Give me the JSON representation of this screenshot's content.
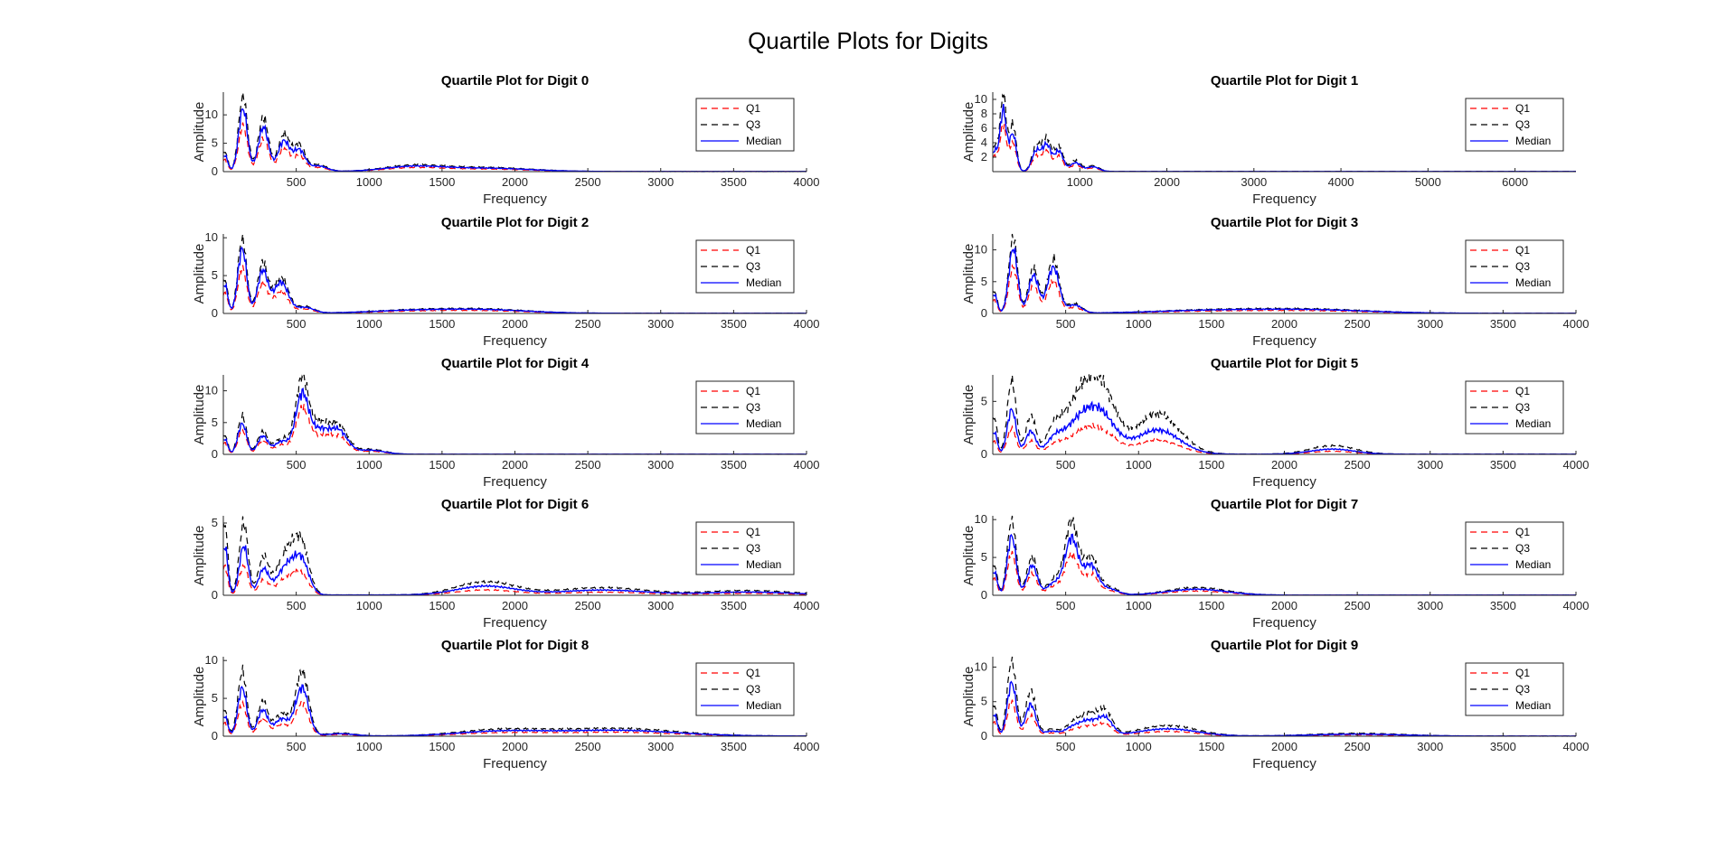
{
  "figure": {
    "title": "Quartile Plots for Digits",
    "colors": {
      "q1": "#ff0000",
      "q3": "#000000",
      "median": "#0000ff",
      "axis": "#262626",
      "background": "#ffffff"
    }
  },
  "chart_data": [
    {
      "type": "line",
      "title": "Quartile Plot for Digit 0",
      "xlabel": "Frequency",
      "ylabel": "Amplitude",
      "xlim": [
        0,
        4000
      ],
      "ylim": [
        0,
        14
      ],
      "xticks": [
        500,
        1000,
        1500,
        2000,
        2500,
        3000,
        3500,
        4000
      ],
      "yticks": [
        0,
        5,
        10
      ],
      "grid": false,
      "legend": {
        "position": "top-right",
        "entries": [
          "Q1",
          "Q3",
          "Median"
        ]
      },
      "peaks": [
        [
          10,
          3.5,
          20
        ],
        [
          135,
          13.5,
          30
        ],
        [
          275,
          9.5,
          35
        ],
        [
          415,
          6.5,
          40
        ],
        [
          520,
          4.5,
          40
        ],
        [
          650,
          1.2,
          60
        ],
        [
          1300,
          1.0,
          200
        ],
        [
          1800,
          0.7,
          300
        ]
      ],
      "quartile_ratios": {
        "Q1": 0.6,
        "Median": 0.82,
        "Q3": 1.0
      }
    },
    {
      "type": "line",
      "title": "Quartile Plot for Digit 1",
      "xlabel": "Frequency",
      "ylabel": "Amplitude",
      "xlim": [
        0,
        6700
      ],
      "ylim": [
        0,
        11
      ],
      "xticks": [
        1000,
        2000,
        3000,
        4000,
        5000,
        6000
      ],
      "yticks": [
        2,
        4,
        6,
        8,
        10
      ],
      "grid": false,
      "legend": {
        "position": "top-right",
        "entries": [
          "Q1",
          "Q3",
          "Median"
        ]
      },
      "peaks": [
        [
          20,
          3.5,
          40
        ],
        [
          120,
          10.5,
          35
        ],
        [
          230,
          6.5,
          40
        ],
        [
          500,
          3.5,
          50
        ],
        [
          620,
          4.5,
          50
        ],
        [
          760,
          3.5,
          50
        ],
        [
          950,
          1.5,
          60
        ],
        [
          1150,
          0.8,
          70
        ]
      ],
      "quartile_ratios": {
        "Q1": 0.6,
        "Median": 0.8,
        "Q3": 1.0
      }
    },
    {
      "type": "line",
      "title": "Quartile Plot for Digit 2",
      "xlabel": "Frequency",
      "ylabel": "Amplitude",
      "xlim": [
        0,
        4000
      ],
      "ylim": [
        0,
        10.5
      ],
      "xticks": [
        500,
        1000,
        1500,
        2000,
        2500,
        3000,
        3500,
        4000
      ],
      "yticks": [
        0,
        5,
        10
      ],
      "grid": false,
      "legend": {
        "position": "top-right",
        "entries": [
          "Q1",
          "Q3",
          "Median"
        ]
      },
      "peaks": [
        [
          10,
          4.5,
          20
        ],
        [
          130,
          10,
          30
        ],
        [
          270,
          6.5,
          35
        ],
        [
          395,
          4.8,
          50
        ],
        [
          560,
          0.9,
          60
        ],
        [
          1300,
          0.4,
          300
        ],
        [
          1800,
          0.5,
          300
        ]
      ],
      "quartile_ratios": {
        "Q1": 0.6,
        "Median": 0.85,
        "Q3": 1.0
      }
    },
    {
      "type": "line",
      "title": "Quartile Plot for Digit 3",
      "xlabel": "Frequency",
      "ylabel": "Amplitude",
      "xlim": [
        0,
        4000
      ],
      "ylim": [
        0,
        12.5
      ],
      "xticks": [
        500,
        1000,
        1500,
        2000,
        2500,
        3000,
        3500,
        4000
      ],
      "yticks": [
        0,
        5,
        10
      ],
      "grid": false,
      "legend": {
        "position": "top-right",
        "entries": [
          "Q1",
          "Q3",
          "Median"
        ]
      },
      "peaks": [
        [
          10,
          3.5,
          20
        ],
        [
          140,
          12,
          30
        ],
        [
          280,
          7,
          35
        ],
        [
          415,
          8.5,
          40
        ],
        [
          560,
          1.5,
          50
        ],
        [
          1500,
          0.5,
          400
        ],
        [
          2200,
          0.6,
          400
        ]
      ],
      "quartile_ratios": {
        "Q1": 0.6,
        "Median": 0.85,
        "Q3": 1.0
      }
    },
    {
      "type": "line",
      "title": "Quartile Plot for Digit 4",
      "xlabel": "Frequency",
      "ylabel": "Amplitude",
      "xlim": [
        0,
        4000
      ],
      "ylim": [
        0,
        12.5
      ],
      "xticks": [
        500,
        1000,
        1500,
        2000,
        2500,
        3000,
        3500,
        4000
      ],
      "yticks": [
        0,
        5,
        10
      ],
      "grid": false,
      "legend": {
        "position": "top-right",
        "entries": [
          "Q1",
          "Q3",
          "Median"
        ]
      },
      "peaks": [
        [
          10,
          3,
          20
        ],
        [
          130,
          6,
          30
        ],
        [
          270,
          3.5,
          35
        ],
        [
          400,
          2.5,
          50
        ],
        [
          540,
          11.5,
          45
        ],
        [
          660,
          4.5,
          60
        ],
        [
          790,
          4.5,
          60
        ],
        [
          1000,
          0.8,
          100
        ]
      ],
      "quartile_ratios": {
        "Q1": 0.6,
        "Median": 0.8,
        "Q3": 1.0
      }
    },
    {
      "type": "line",
      "title": "Quartile Plot for Digit 5",
      "xlabel": "Frequency",
      "ylabel": "Amplitude",
      "xlim": [
        0,
        4000
      ],
      "ylim": [
        0,
        7.5
      ],
      "xticks": [
        500,
        1000,
        1500,
        2000,
        2500,
        3000,
        3500,
        4000
      ],
      "yticks": [
        0,
        5
      ],
      "grid": false,
      "legend": {
        "position": "top-right",
        "entries": [
          "Q1",
          "Q3",
          "Median"
        ]
      },
      "peaks": [
        [
          10,
          3.5,
          20
        ],
        [
          130,
          7.0,
          30
        ],
        [
          260,
          3.5,
          35
        ],
        [
          420,
          1.5,
          50
        ],
        [
          600,
          5.0,
          120
        ],
        [
          750,
          4.5,
          100
        ],
        [
          1130,
          3.8,
          150
        ],
        [
          2330,
          0.8,
          150
        ]
      ],
      "quartile_ratios": {
        "Q1": 0.35,
        "Median": 0.6,
        "Q3": 1.0
      }
    },
    {
      "type": "line",
      "title": "Quartile Plot for Digit 6",
      "xlabel": "Frequency",
      "ylabel": "Amplitude",
      "xlim": [
        0,
        4000
      ],
      "ylim": [
        0,
        5.5
      ],
      "xticks": [
        500,
        1000,
        1500,
        2000,
        2500,
        3000,
        3500,
        4000
      ],
      "yticks": [
        0,
        5
      ],
      "grid": false,
      "legend": {
        "position": "top-right",
        "entries": [
          "Q1",
          "Q3",
          "Median"
        ]
      },
      "peaks": [
        [
          10,
          5,
          20
        ],
        [
          140,
          5,
          30
        ],
        [
          275,
          2.5,
          35
        ],
        [
          440,
          3.0,
          70
        ],
        [
          540,
          2.8,
          50
        ],
        [
          1800,
          0.9,
          200
        ],
        [
          2600,
          0.5,
          300
        ],
        [
          3600,
          0.3,
          300
        ]
      ],
      "quartile_ratios": {
        "Q1": 0.4,
        "Median": 0.68,
        "Q3": 1.0
      }
    },
    {
      "type": "line",
      "title": "Quartile Plot for Digit 7",
      "xlabel": "Frequency",
      "ylabel": "Amplitude",
      "xlim": [
        0,
        4000
      ],
      "ylim": [
        0,
        10.5
      ],
      "xticks": [
        500,
        1000,
        1500,
        2000,
        2500,
        3000,
        3500,
        4000
      ],
      "yticks": [
        0,
        5,
        10
      ],
      "grid": false,
      "legend": {
        "position": "top-right",
        "entries": [
          "Q1",
          "Q3",
          "Median"
        ]
      },
      "peaks": [
        [
          10,
          4,
          20
        ],
        [
          130,
          10,
          30
        ],
        [
          270,
          5,
          35
        ],
        [
          420,
          2,
          50
        ],
        [
          540,
          9.5,
          45
        ],
        [
          670,
          5,
          50
        ],
        [
          800,
          1.0,
          60
        ],
        [
          1400,
          1.0,
          200
        ]
      ],
      "quartile_ratios": {
        "Q1": 0.55,
        "Median": 0.78,
        "Q3": 1.0
      }
    },
    {
      "type": "line",
      "title": "Quartile Plot for Digit 8",
      "xlabel": "Frequency",
      "ylabel": "Amplitude",
      "xlim": [
        0,
        4000
      ],
      "ylim": [
        0,
        10.5
      ],
      "xticks": [
        500,
        1000,
        1500,
        2000,
        2500,
        3000,
        3500,
        4000
      ],
      "yticks": [
        0,
        5,
        10
      ],
      "grid": false,
      "legend": {
        "position": "top-right",
        "entries": [
          "Q1",
          "Q3",
          "Median"
        ]
      },
      "peaks": [
        [
          10,
          3.5,
          20
        ],
        [
          130,
          8.5,
          30
        ],
        [
          270,
          4.5,
          35
        ],
        [
          400,
          3,
          50
        ],
        [
          540,
          8.5,
          45
        ],
        [
          800,
          0.4,
          100
        ],
        [
          1900,
          0.8,
          300
        ],
        [
          2700,
          1.0,
          400
        ]
      ],
      "quartile_ratios": {
        "Q1": 0.5,
        "Median": 0.75,
        "Q3": 1.0
      }
    },
    {
      "type": "line",
      "title": "Quartile Plot for Digit 9",
      "xlabel": "Frequency",
      "ylabel": "Amplitude",
      "xlim": [
        0,
        4000
      ],
      "ylim": [
        0,
        11.5
      ],
      "xticks": [
        500,
        1000,
        1500,
        2000,
        2500,
        3000,
        3500,
        4000
      ],
      "yticks": [
        0,
        5,
        10
      ],
      "grid": false,
      "legend": {
        "position": "top-right",
        "entries": [
          "Q1",
          "Q3",
          "Median"
        ]
      },
      "peaks": [
        [
          10,
          4.5,
          20
        ],
        [
          130,
          11,
          30
        ],
        [
          260,
          6.5,
          35
        ],
        [
          400,
          1.0,
          50
        ],
        [
          540,
          1.5,
          50
        ],
        [
          650,
          3.0,
          60
        ],
        [
          770,
          3.5,
          50
        ],
        [
          1200,
          1.5,
          200
        ],
        [
          2500,
          0.4,
          300
        ]
      ],
      "quartile_ratios": {
        "Q1": 0.45,
        "Median": 0.7,
        "Q3": 1.0
      }
    }
  ]
}
